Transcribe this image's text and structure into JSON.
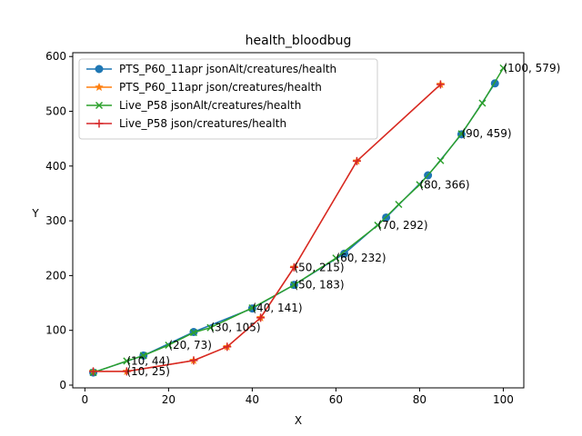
{
  "chart_data": {
    "type": "line",
    "title": "health_bloodbug",
    "xlabel": "X",
    "ylabel": "Y",
    "xlim": [
      -2.9,
      104.9
    ],
    "ylim": [
      -5,
      607
    ],
    "x_ticks": [
      0,
      20,
      40,
      60,
      80,
      100
    ],
    "y_ticks": [
      0,
      100,
      200,
      300,
      400,
      500,
      600
    ],
    "grid": false,
    "legend_position": "upper-left",
    "series": [
      {
        "name": "PTS_P60_11apr jsonAlt/creatures/health",
        "color": "#1f77b4",
        "marker": "circle",
        "x": [
          2,
          14,
          26,
          40,
          50,
          62,
          72,
          82,
          90,
          98
        ],
        "y": [
          23,
          54,
          97,
          140,
          183,
          240,
          306,
          383,
          458,
          551
        ]
      },
      {
        "name": "PTS_P60_11apr json/creatures/health",
        "color": "#ff7f0e",
        "marker": "star",
        "x": [
          2,
          10,
          26,
          34,
          42,
          50,
          65,
          85
        ],
        "y": [
          25,
          25,
          45,
          70,
          123,
          215,
          409,
          549
        ]
      },
      {
        "name": "Live_P58 jsonAlt/creatures/health",
        "color": "#2ca02c",
        "marker": "x",
        "x": [
          2,
          10,
          14,
          20,
          26,
          30,
          40,
          50,
          60,
          70,
          75,
          80,
          85,
          90,
          95,
          100
        ],
        "y": [
          23,
          44,
          54,
          73,
          96,
          105,
          141,
          183,
          232,
          292,
          330,
          366,
          410,
          459,
          515,
          579
        ]
      },
      {
        "name": "Live_P58 json/creatures/health",
        "color": "#d62728",
        "marker": "plus",
        "x": [
          2,
          10,
          26,
          34,
          42,
          50,
          65,
          85
        ],
        "y": [
          25,
          25,
          45,
          70,
          123,
          215,
          409,
          549
        ]
      }
    ],
    "annotations": [
      {
        "text": "(10, 44)",
        "x": 10,
        "y": 44
      },
      {
        "text": "(10, 25)",
        "x": 10,
        "y": 25
      },
      {
        "text": "(20, 73)",
        "x": 20,
        "y": 73
      },
      {
        "text": "(30, 105)",
        "x": 30,
        "y": 105
      },
      {
        "text": "(40, 141)",
        "x": 40,
        "y": 141
      },
      {
        "text": "(50, 215)",
        "x": 50,
        "y": 215
      },
      {
        "text": "(50, 183)",
        "x": 50,
        "y": 183
      },
      {
        "text": "(60, 232)",
        "x": 60,
        "y": 232
      },
      {
        "text": "(70, 292)",
        "x": 70,
        "y": 292
      },
      {
        "text": "(80, 366)",
        "x": 80,
        "y": 366
      },
      {
        "text": "(90, 459)",
        "x": 90,
        "y": 459
      },
      {
        "text": "(100, 579)",
        "x": 100,
        "y": 579
      }
    ]
  }
}
